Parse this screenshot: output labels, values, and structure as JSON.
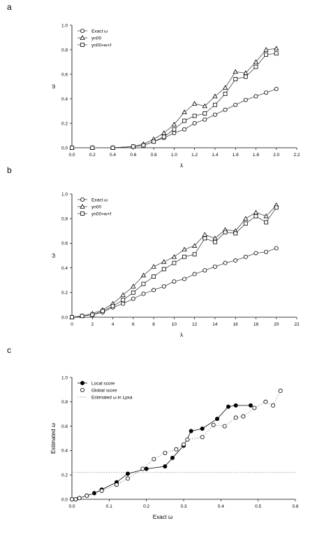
{
  "chart_data": [
    {
      "panel_label": "a",
      "type": "line",
      "xlabel": "λ",
      "ylabel": "ω",
      "xlim": [
        0.0,
        2.2
      ],
      "ylim": [
        0.0,
        1.0
      ],
      "xticks": [
        0.0,
        0.2,
        0.4,
        0.6,
        0.8,
        1.0,
        1.2,
        1.4,
        1.6,
        1.8,
        2.0,
        2.2
      ],
      "xtick_labels": [
        "0.0",
        "0.2",
        "0.4",
        "0.6",
        "0.8",
        "1.0",
        "1.2",
        "1.4",
        "1.6",
        "1.8",
        "2.0",
        "2.2"
      ],
      "yticks": [
        0.0,
        0.2,
        0.4,
        0.6,
        0.8,
        1.0
      ],
      "ytick_labels": [
        "0.0",
        "0.2",
        "0.4",
        "0.6",
        "0.8",
        "1.0"
      ],
      "grid": false,
      "legend_position": "top-left",
      "series": [
        {
          "name": "Exact ω",
          "marker": "circle",
          "x": [
            0.0,
            0.2,
            0.4,
            0.6,
            0.7,
            0.8,
            0.9,
            1.0,
            1.1,
            1.2,
            1.3,
            1.4,
            1.5,
            1.6,
            1.7,
            1.8,
            1.9,
            2.0
          ],
          "y": [
            0.0,
            0.0,
            0.0,
            0.01,
            0.02,
            0.05,
            0.08,
            0.12,
            0.15,
            0.2,
            0.23,
            0.27,
            0.31,
            0.35,
            0.39,
            0.42,
            0.45,
            0.48
          ]
        },
        {
          "name": "yn00",
          "marker": "triangle",
          "x": [
            0.0,
            0.2,
            0.4,
            0.6,
            0.7,
            0.8,
            0.9,
            1.0,
            1.1,
            1.2,
            1.3,
            1.4,
            1.5,
            1.6,
            1.7,
            1.8,
            1.9,
            2.0
          ],
          "y": [
            0.0,
            0.0,
            0.0,
            0.01,
            0.03,
            0.07,
            0.12,
            0.19,
            0.29,
            0.36,
            0.34,
            0.42,
            0.49,
            0.62,
            0.61,
            0.7,
            0.8,
            0.81
          ]
        },
        {
          "name": "yn00+w+f",
          "marker": "square",
          "x": [
            0.0,
            0.2,
            0.4,
            0.6,
            0.7,
            0.8,
            0.9,
            1.0,
            1.1,
            1.2,
            1.3,
            1.4,
            1.5,
            1.6,
            1.7,
            1.8,
            1.9,
            2.0
          ],
          "y": [
            0.0,
            0.0,
            0.0,
            0.01,
            0.02,
            0.05,
            0.09,
            0.15,
            0.22,
            0.26,
            0.28,
            0.35,
            0.44,
            0.56,
            0.58,
            0.66,
            0.76,
            0.77
          ]
        }
      ]
    },
    {
      "panel_label": "b",
      "type": "line",
      "xlabel": "λ",
      "ylabel": "ω",
      "xlim": [
        0,
        22
      ],
      "ylim": [
        0.0,
        1.0
      ],
      "xticks": [
        0,
        2,
        4,
        6,
        8,
        10,
        12,
        14,
        16,
        18,
        20,
        22
      ],
      "xtick_labels": [
        "0",
        "2",
        "4",
        "6",
        "8",
        "10",
        "12",
        "14",
        "16",
        "18",
        "20",
        "22"
      ],
      "yticks": [
        0.0,
        0.2,
        0.4,
        0.6,
        0.8,
        1.0
      ],
      "ytick_labels": [
        "0.0",
        "0.2",
        "0.4",
        "0.6",
        "0.8",
        "1.0"
      ],
      "grid": false,
      "legend_position": "top-left",
      "series": [
        {
          "name": "Exact ω",
          "marker": "circle",
          "x": [
            0,
            1,
            2,
            3,
            4,
            5,
            6,
            7,
            8,
            9,
            10,
            11,
            12,
            13,
            14,
            15,
            16,
            17,
            18,
            19,
            20
          ],
          "y": [
            0.0,
            0.01,
            0.02,
            0.04,
            0.08,
            0.11,
            0.15,
            0.19,
            0.22,
            0.25,
            0.29,
            0.31,
            0.35,
            0.38,
            0.41,
            0.44,
            0.46,
            0.49,
            0.52,
            0.53,
            0.56
          ]
        },
        {
          "name": "yn00",
          "marker": "triangle",
          "x": [
            0,
            1,
            2,
            3,
            4,
            5,
            6,
            7,
            8,
            9,
            10,
            11,
            12,
            13,
            14,
            15,
            16,
            17,
            18,
            19,
            20
          ],
          "y": [
            0.0,
            0.01,
            0.03,
            0.06,
            0.11,
            0.18,
            0.25,
            0.34,
            0.41,
            0.45,
            0.49,
            0.55,
            0.58,
            0.67,
            0.64,
            0.71,
            0.7,
            0.8,
            0.85,
            0.82,
            0.91
          ]
        },
        {
          "name": "yn00+w+f",
          "marker": "square",
          "x": [
            0,
            1,
            2,
            3,
            4,
            5,
            6,
            7,
            8,
            9,
            10,
            11,
            12,
            13,
            14,
            15,
            16,
            17,
            18,
            19,
            20
          ],
          "y": [
            0.0,
            0.01,
            0.02,
            0.05,
            0.09,
            0.14,
            0.2,
            0.27,
            0.33,
            0.39,
            0.44,
            0.49,
            0.51,
            0.64,
            0.61,
            0.69,
            0.68,
            0.76,
            0.82,
            0.77,
            0.89
          ]
        }
      ]
    },
    {
      "panel_label": "c",
      "type": "scatter",
      "xlabel": "Exact ω",
      "ylabel": "Estimated ω",
      "xlim": [
        0.0,
        0.6
      ],
      "ylim": [
        0.0,
        1.0
      ],
      "xticks": [
        0.0,
        0.1,
        0.2,
        0.3,
        0.4,
        0.5,
        0.6
      ],
      "xtick_labels": [
        "0.0",
        "0.1",
        "0.2",
        "0.3",
        "0.4",
        "0.5",
        "0.6"
      ],
      "yticks": [
        0.0,
        0.2,
        0.4,
        0.6,
        0.8,
        1.0
      ],
      "ytick_labels": [
        "0.0",
        "0.2",
        "0.4",
        "0.6",
        "0.8",
        "1.0"
      ],
      "grid": false,
      "legend_position": "top-left",
      "reference_line": {
        "name": "Estimated ω in Lpxa",
        "y": 0.22
      },
      "series": [
        {
          "name": "Local score",
          "marker": "filled-circle",
          "x": [
            0.0,
            0.01,
            0.02,
            0.04,
            0.06,
            0.08,
            0.12,
            0.15,
            0.2,
            0.25,
            0.27,
            0.3,
            0.32,
            0.35,
            0.39,
            0.42,
            0.44,
            0.48
          ],
          "y": [
            0.0,
            0.0,
            0.01,
            0.03,
            0.05,
            0.08,
            0.14,
            0.21,
            0.25,
            0.27,
            0.34,
            0.44,
            0.56,
            0.58,
            0.66,
            0.76,
            0.77,
            0.77
          ]
        },
        {
          "name": "Global score",
          "marker": "open-circle",
          "x": [
            0.0,
            0.01,
            0.02,
            0.04,
            0.08,
            0.12,
            0.15,
            0.19,
            0.22,
            0.25,
            0.28,
            0.3,
            0.31,
            0.35,
            0.38,
            0.41,
            0.44,
            0.46,
            0.49,
            0.52,
            0.54,
            0.56
          ],
          "y": [
            0.0,
            0.0,
            0.01,
            0.03,
            0.07,
            0.12,
            0.17,
            0.25,
            0.33,
            0.38,
            0.41,
            0.45,
            0.49,
            0.51,
            0.61,
            0.6,
            0.67,
            0.68,
            0.75,
            0.8,
            0.77,
            0.89
          ]
        }
      ]
    }
  ]
}
